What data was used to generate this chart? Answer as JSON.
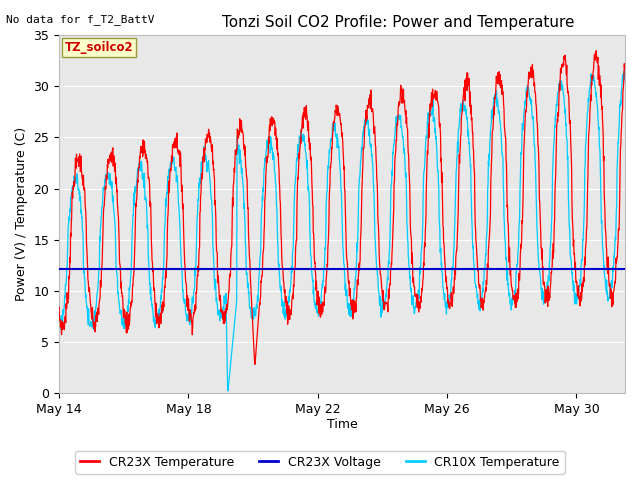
{
  "title": "Tonzi Soil CO2 Profile: Power and Temperature",
  "no_data_text": "No data for f_T2_BattV",
  "ylabel": "Power (V) / Temperature (C)",
  "xlabel": "Time",
  "ylim": [
    0,
    35
  ],
  "yticks": [
    0,
    5,
    10,
    15,
    20,
    25,
    30,
    35
  ],
  "legend_labels": [
    "CR23X Temperature",
    "CR23X Voltage",
    "CR10X Temperature"
  ],
  "legend_colors": [
    "#ff0000",
    "#0000bb",
    "#00ccff"
  ],
  "voltage_line_value": 12.1,
  "site_label": "TZ_soilco2",
  "fig_bg_color": "#ffffff",
  "plot_bg_color": "#e8e8e8",
  "title_fontsize": 11,
  "label_fontsize": 9,
  "tick_fontsize": 9,
  "xlim": [
    0,
    17.5
  ],
  "xtick_positions": [
    0,
    4,
    8,
    12,
    16
  ],
  "xtick_labels": [
    "May 14",
    "May 18",
    "May 22",
    "May 26",
    "May 30"
  ]
}
